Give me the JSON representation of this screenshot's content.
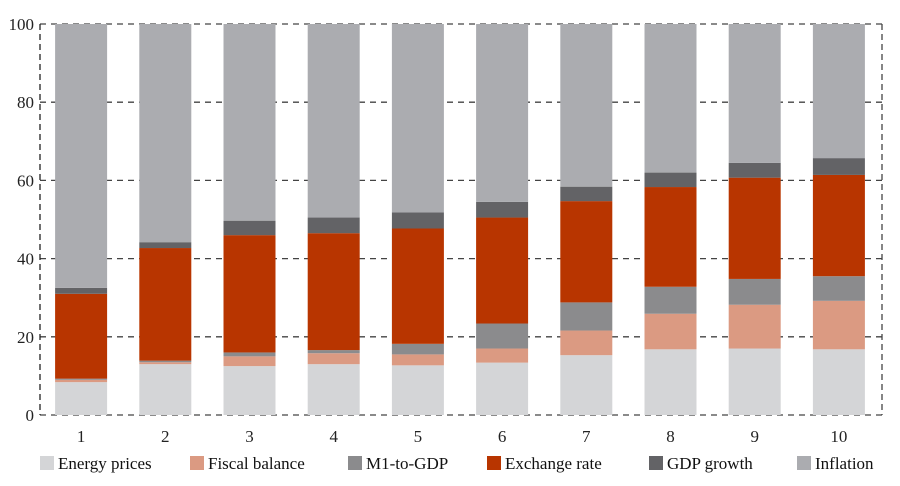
{
  "chart_data": {
    "type": "bar",
    "stacked": true,
    "title": "",
    "xlabel": "",
    "ylabel": "",
    "ylim": [
      0,
      100
    ],
    "yticks": [
      0,
      20,
      40,
      60,
      80,
      100
    ],
    "grid": "horizontal dashed",
    "legend_position": "bottom",
    "categories": [
      "1",
      "2",
      "3",
      "4",
      "5",
      "6",
      "7",
      "8",
      "9",
      "10"
    ],
    "series": [
      {
        "name": "Energy prices",
        "color": "#d4d5d7",
        "values": [
          8.4,
          13.0,
          12.5,
          13.0,
          12.7,
          13.4,
          15.3,
          16.8,
          17.0,
          16.8
        ]
      },
      {
        "name": "Fiscal balance",
        "color": "#db9a82",
        "values": [
          0.6,
          0.5,
          2.5,
          2.8,
          2.8,
          3.6,
          6.3,
          9.1,
          11.2,
          12.4
        ]
      },
      {
        "name": "M1-to-GDP",
        "color": "#8b8b8d",
        "values": [
          0.3,
          0.4,
          1.0,
          0.8,
          2.7,
          6.4,
          7.2,
          6.9,
          6.6,
          6.3
        ]
      },
      {
        "name": "Exchange rate",
        "color": "#b83500",
        "values": [
          21.7,
          28.8,
          30.0,
          29.9,
          29.5,
          27.1,
          25.9,
          25.5,
          25.9,
          25.9
        ]
      },
      {
        "name": "GDP growth",
        "color": "#636366",
        "values": [
          1.5,
          1.5,
          3.7,
          4.0,
          4.1,
          4.0,
          3.7,
          3.7,
          3.8,
          4.3
        ]
      },
      {
        "name": "Inflation",
        "color": "#abacb0",
        "values": [
          67.5,
          55.8,
          50.3,
          49.5,
          48.2,
          45.5,
          41.6,
          38.0,
          35.5,
          34.3
        ]
      }
    ]
  }
}
